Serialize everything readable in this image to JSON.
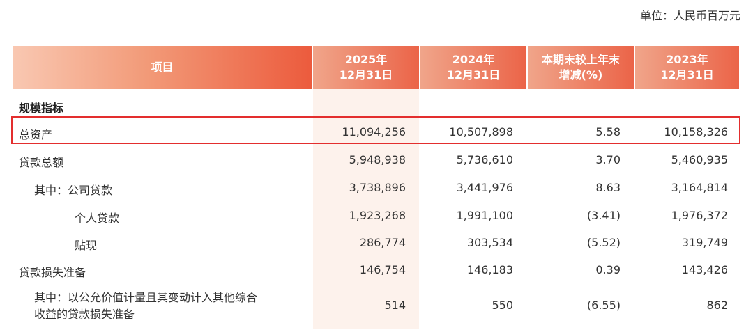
{
  "unit_label": "单位：人民币百万元",
  "header": {
    "item": "项目",
    "col1_line1": "2025年",
    "col1_line2": "12月31日",
    "col2_line1": "2024年",
    "col2_line2": "12月31日",
    "col3_line1": "本期末较上年末",
    "col3_line2": "增减(%)",
    "col4_line1": "2023年",
    "col4_line2": "12月31日"
  },
  "section_label": "规模指标",
  "rows": [
    {
      "label": "总资产",
      "v2025": "11,094,256",
      "v2024": "10,507,898",
      "change": "5.58",
      "v2023": "10,158,326"
    },
    {
      "label": "贷款总额",
      "v2025": "5,948,938",
      "v2024": "5,736,610",
      "change": "3.70",
      "v2023": "5,460,935"
    },
    {
      "label": "其中：公司贷款",
      "v2025": "3,738,896",
      "v2024": "3,441,976",
      "change": "8.63",
      "v2023": "3,164,814"
    },
    {
      "label": "个人贷款",
      "v2025": "1,923,268",
      "v2024": "1,991,100",
      "change": "(3.41)",
      "v2023": "1,976,372"
    },
    {
      "label": "贴现",
      "v2025": "286,774",
      "v2024": "303,534",
      "change": "(5.52)",
      "v2023": "319,749"
    },
    {
      "label": "贷款损失准备",
      "v2025": "146,754",
      "v2024": "146,183",
      "change": "0.39",
      "v2023": "143,426"
    },
    {
      "label_line1": "其中：以公允价值计量且其变动计入其他综合",
      "label_line2": "收益的贷款损失准备",
      "v2025": "514",
      "v2024": "550",
      "change": "(6.55)",
      "v2023": "862"
    }
  ],
  "colors": {
    "header_start": "#f9c8b2",
    "header_end": "#ec5b3d",
    "highlight_column": "#fdf2ec",
    "highlight_border": "#e32e2e"
  }
}
